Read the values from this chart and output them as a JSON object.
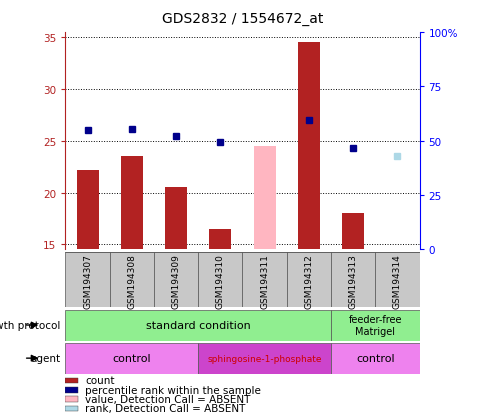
{
  "title": "GDS2832 / 1554672_at",
  "samples": [
    "GSM194307",
    "GSM194308",
    "GSM194309",
    "GSM194310",
    "GSM194311",
    "GSM194312",
    "GSM194313",
    "GSM194314"
  ],
  "count_values": [
    22.2,
    23.5,
    20.5,
    16.5,
    null,
    34.5,
    18.0,
    null
  ],
  "count_absent_values": [
    null,
    null,
    null,
    null,
    24.5,
    null,
    null,
    null
  ],
  "percentile_values": [
    26.0,
    26.1,
    25.5,
    24.9,
    null,
    27.0,
    24.3,
    null
  ],
  "percentile_absent_values": [
    null,
    null,
    null,
    null,
    null,
    null,
    null,
    23.5
  ],
  "count_color": "#b22222",
  "count_absent_color": "#ffb6c1",
  "percentile_color": "#00008b",
  "percentile_absent_color": "#add8e6",
  "ylim_left": [
    14.5,
    35.5
  ],
  "yticks_left": [
    15,
    20,
    25,
    30,
    35
  ],
  "yticks_right": [
    0,
    25,
    50,
    75,
    100
  ],
  "yticklabels_right": [
    "0",
    "25",
    "50",
    "75",
    "100%"
  ],
  "legend_items": [
    {
      "label": "count",
      "color": "#b22222"
    },
    {
      "label": "percentile rank within the sample",
      "color": "#00008b"
    },
    {
      "label": "value, Detection Call = ABSENT",
      "color": "#ffb6c1"
    },
    {
      "label": "rank, Detection Call = ABSENT",
      "color": "#add8e6"
    }
  ],
  "bar_width": 0.5,
  "sample_box_color": "#c8c8c8",
  "growth_color": "#90ee90",
  "agent_light_color": "#ee82ee",
  "agent_dark_color": "#cc44cc",
  "sphingosine_text_color": "#cc0000"
}
